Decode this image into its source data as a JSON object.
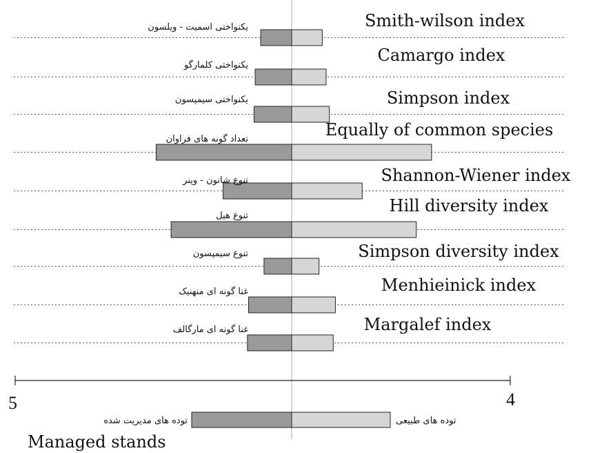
{
  "chart_data": {
    "type": "butterfly-bar",
    "categories": [
      "Smith-wilson  index",
      "Camargo  index",
      "Simpson index",
      "Equally of common species",
      "Shannon-Wiener index",
      "Hill diversity index",
      "Simpson diversity index",
      "Menhieinick index",
      "Margalef index"
    ],
    "category_labels_fa": [
      "یکنواختی اسمیت - ویلسون",
      "یکنواختی کلمارگو",
      "یکنواختی سیمپسون",
      "تعداد گونه های فراوان",
      "تنوع شانون - وینر",
      "تنوع هیل",
      "تنوع سیمپسون",
      "غنا گونه ای منهنیک",
      "غنا گونه ای مارگالف"
    ],
    "series": [
      {
        "name": "توده های مدیریت شده",
        "name_en": "Managed stands",
        "color": "#9a9a9a",
        "side": "left",
        "values": [
          0.56,
          0.66,
          0.68,
          2.45,
          1.24,
          2.18,
          0.5,
          0.78,
          0.8
        ]
      },
      {
        "name": "توده های طبیعی",
        "color": "#d6d6d6",
        "side": "right",
        "values": [
          0.56,
          0.63,
          0.69,
          2.56,
          1.29,
          2.28,
          0.5,
          0.8,
          0.76
        ]
      }
    ],
    "left_lim": [
      0,
      5
    ],
    "left_ticks": [
      5
    ],
    "right_lim": [
      0,
      4
    ],
    "right_ticks": [
      4
    ]
  }
}
